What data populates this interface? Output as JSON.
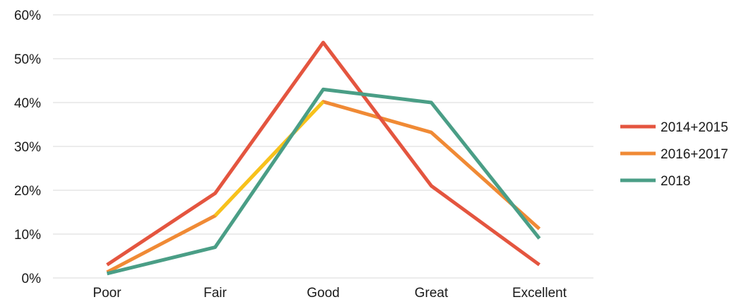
{
  "chart_data": {
    "type": "line",
    "title": "",
    "xlabel": "",
    "ylabel": "",
    "categories": [
      "Poor",
      "Fair",
      "Good",
      "Great",
      "Excellent"
    ],
    "y_ticks": [
      "0%",
      "10%",
      "20%",
      "30%",
      "40%",
      "50%",
      "60%"
    ],
    "ylim": [
      0,
      60
    ],
    "y_unit": "%",
    "grid": true,
    "legend_position": "right",
    "series": [
      {
        "name": "2014+2015",
        "color": "#e4553f",
        "values": [
          3,
          19.3,
          53.7,
          21,
          3
        ]
      },
      {
        "name": "2016+2017",
        "color": "#f08a35",
        "values": [
          1.3,
          14.2,
          40.2,
          33.2,
          11.2
        ]
      },
      {
        "name": "2018",
        "color": "#4a9e86",
        "values": [
          1,
          7,
          43,
          40,
          9
        ]
      }
    ],
    "highlight_segment": {
      "series": "2016+2017",
      "from_category": "Fair",
      "to_category": "Good",
      "color": "#f7c21b"
    }
  }
}
